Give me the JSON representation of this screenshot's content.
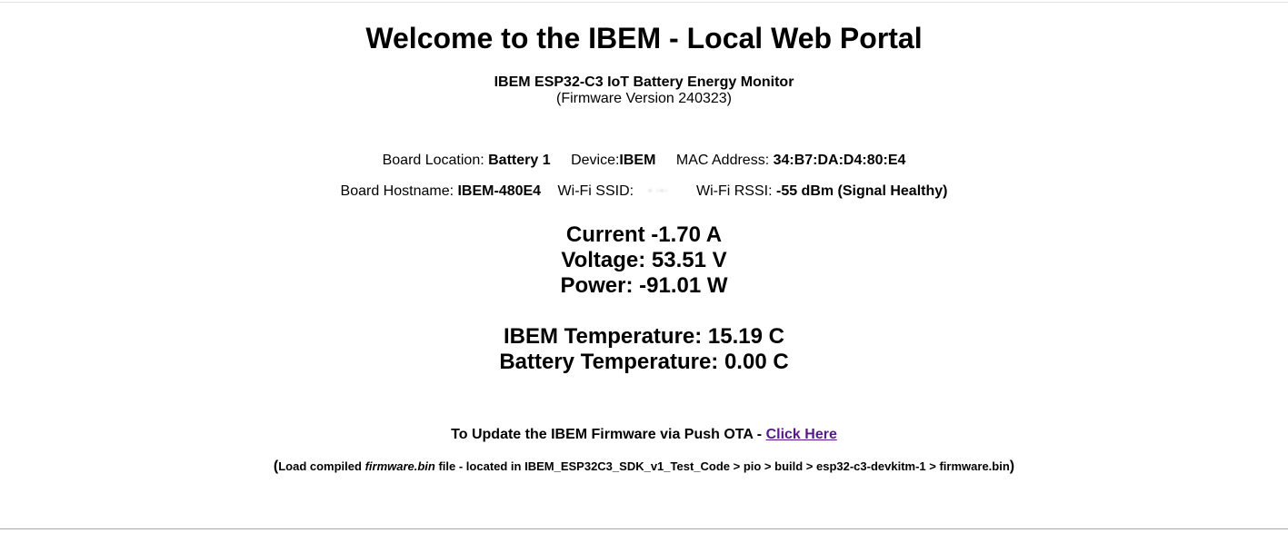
{
  "title": "Welcome to the IBEM - Local Web Portal",
  "subtitle": "IBEM ESP32-C3 IoT Battery Energy Monitor",
  "firmware": "(Firmware Version 240323)",
  "info_row1": {
    "board_location_label": "Board Location: ",
    "board_location_value": "Battery 1",
    "device_label": "Device:",
    "device_value": "IBEM",
    "mac_label": "MAC Address: ",
    "mac_value": "34:B7:DA:D4:80:E4"
  },
  "info_row2": {
    "hostname_label": "Board Hostname: ",
    "hostname_value": "IBEM-480E4",
    "ssid_label": "Wi-Fi SSID: ",
    "ssid_value": "",
    "rssi_label": "Wi-Fi RSSI: ",
    "rssi_value": "-55 dBm (Signal Healthy)"
  },
  "readings": {
    "current": "Current -1.70 A",
    "voltage": "Voltage: 53.51 V",
    "power": "Power: -91.01 W",
    "ibem_temperature": "IBEM Temperature: 15.19 C",
    "battery_temperature": "Battery Temperature: 0.00 C"
  },
  "ota": {
    "text": "To Update the IBEM Firmware via Push OTA - ",
    "link_label": "Click Here"
  },
  "load_note": {
    "open_paren": "(",
    "prefix": "Load compiled ",
    "filename": "firmware.bin",
    "suffix": " file - located in IBEM_ESP32C3_SDK_v1_Test_Code > pio > build > esp32-c3-devkitm-1 > firmware.bin",
    "close_paren": ")"
  },
  "colors": {
    "link": "#551a8b",
    "text": "#000000",
    "background": "#ffffff"
  }
}
